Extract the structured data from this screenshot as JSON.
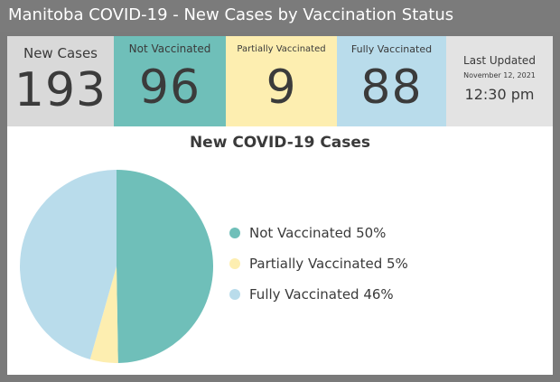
{
  "header": {
    "title": "Manitoba COVID-19 - New Cases by Vaccination Status"
  },
  "tiles": {
    "new_cases": {
      "label": "New Cases",
      "value": "193"
    },
    "not_vaccinated": {
      "label": "Not Vaccinated",
      "value": "96"
    },
    "partially_vaccinated": {
      "label": "Partially Vaccinated",
      "value": "9"
    },
    "fully_vaccinated": {
      "label": "Fully Vaccinated",
      "value": "88"
    },
    "last_updated": {
      "label": "Last Updated",
      "date": "November 12, 2021",
      "time": "12:30 pm"
    }
  },
  "colors": {
    "not_vaccinated": "#6fbfb9",
    "partially_vaccinated": "#fdeeb0",
    "fully_vaccinated": "#b9dceb",
    "new_cases": "#d9d9d9"
  },
  "chart_data": {
    "type": "pie",
    "title": "New COVID-19 Cases",
    "categories": [
      "Not Vaccinated",
      "Partially Vaccinated",
      "Fully Vaccinated"
    ],
    "values": [
      96,
      9,
      88
    ],
    "percent_labels": [
      "50%",
      "5%",
      "46%"
    ],
    "legend_labels": [
      "Not Vaccinated 50%",
      "Partially Vaccinated 5%",
      "Fully Vaccinated 46%"
    ],
    "legend_position": "right"
  }
}
